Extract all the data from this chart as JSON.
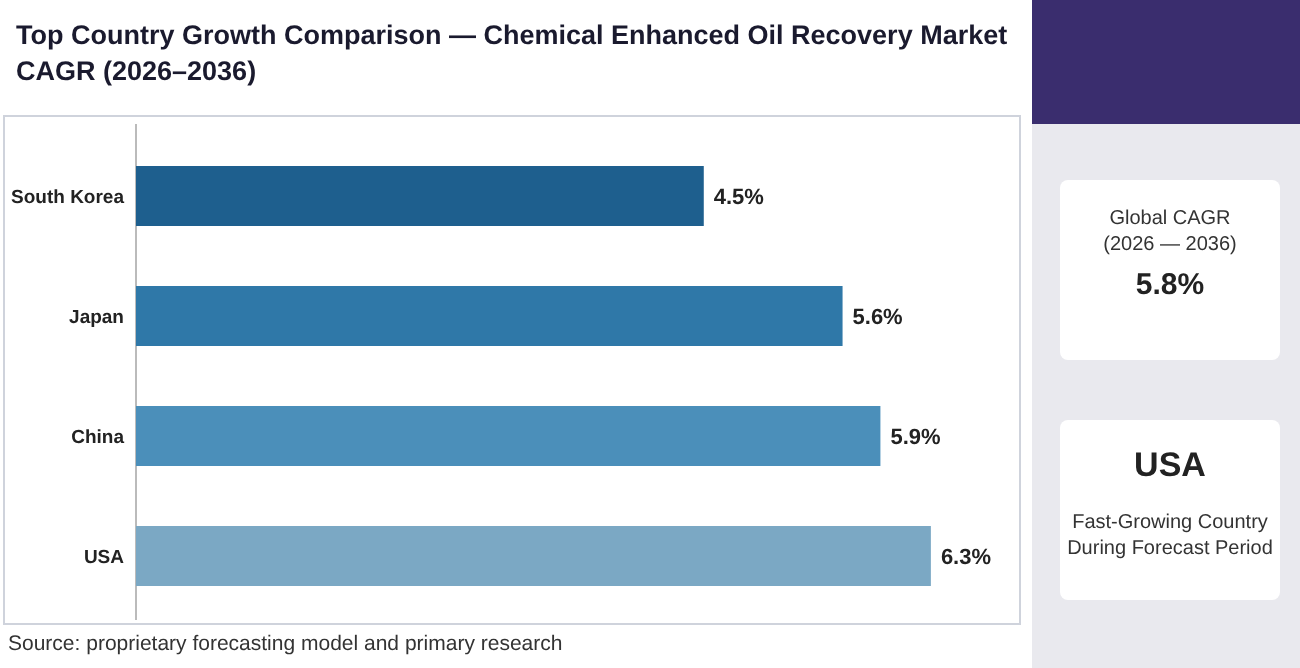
{
  "chart_data": [
    {
      "type": "bar",
      "orientation": "horizontal",
      "title": "Top Country Growth Comparison — Chemical Enhanced Oil Recovery Market CAGR (2026–2036)",
      "categories": [
        "South Korea",
        "Japan",
        "China",
        "USA"
      ],
      "values": [
        4.5,
        5.6,
        5.9,
        6.3
      ],
      "colors": [
        "#1e5f8e",
        "#2f78a8",
        "#4b8fba",
        "#7ba8c4"
      ],
      "data_labels": true,
      "value_labels": [
        "4.5%",
        "5.6%",
        "5.9%",
        "6.3%"
      ],
      "annotations": [
        "Source: proprietary forecasting model and primary research"
      ]
    },
    {
      "type": "other",
      "annotations": [
        "Global CAGR",
        "(2026 — 2036)",
        "5.8%",
        "USA",
        "Fast-Growing Country",
        "During Forecast Period"
      ]
    }
  ]
}
